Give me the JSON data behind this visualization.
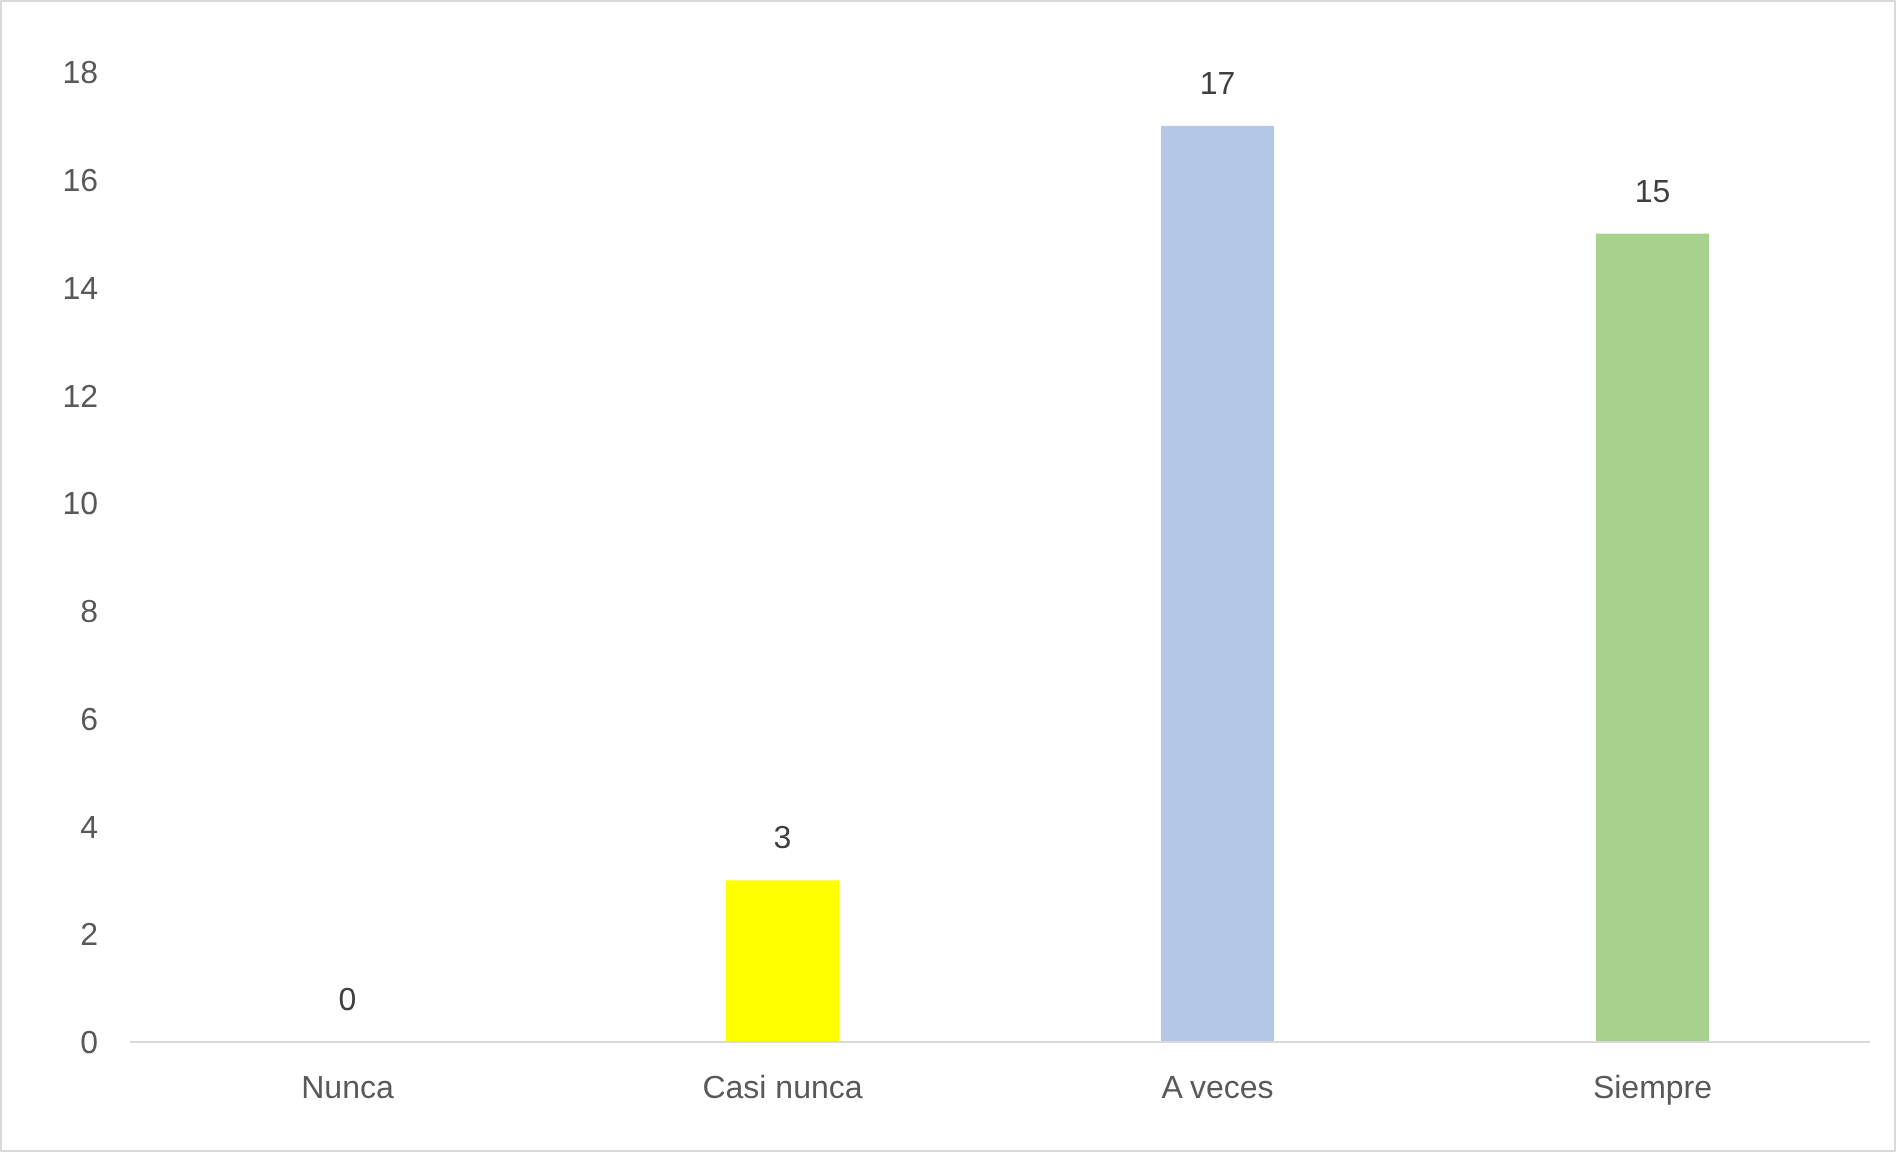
{
  "chart_data": {
    "type": "bar",
    "categories": [
      "Nunca",
      "Casi nunca",
      "A veces",
      "Siempre"
    ],
    "values": [
      0,
      3,
      17,
      15
    ],
    "colors": [
      "#4472c4",
      "#ffff00",
      "#b4c7e7",
      "#a9d18e"
    ],
    "ylim": [
      0,
      18
    ],
    "yticks": [
      0,
      2,
      4,
      6,
      8,
      10,
      12,
      14,
      16,
      18
    ],
    "data_labels": true
  }
}
